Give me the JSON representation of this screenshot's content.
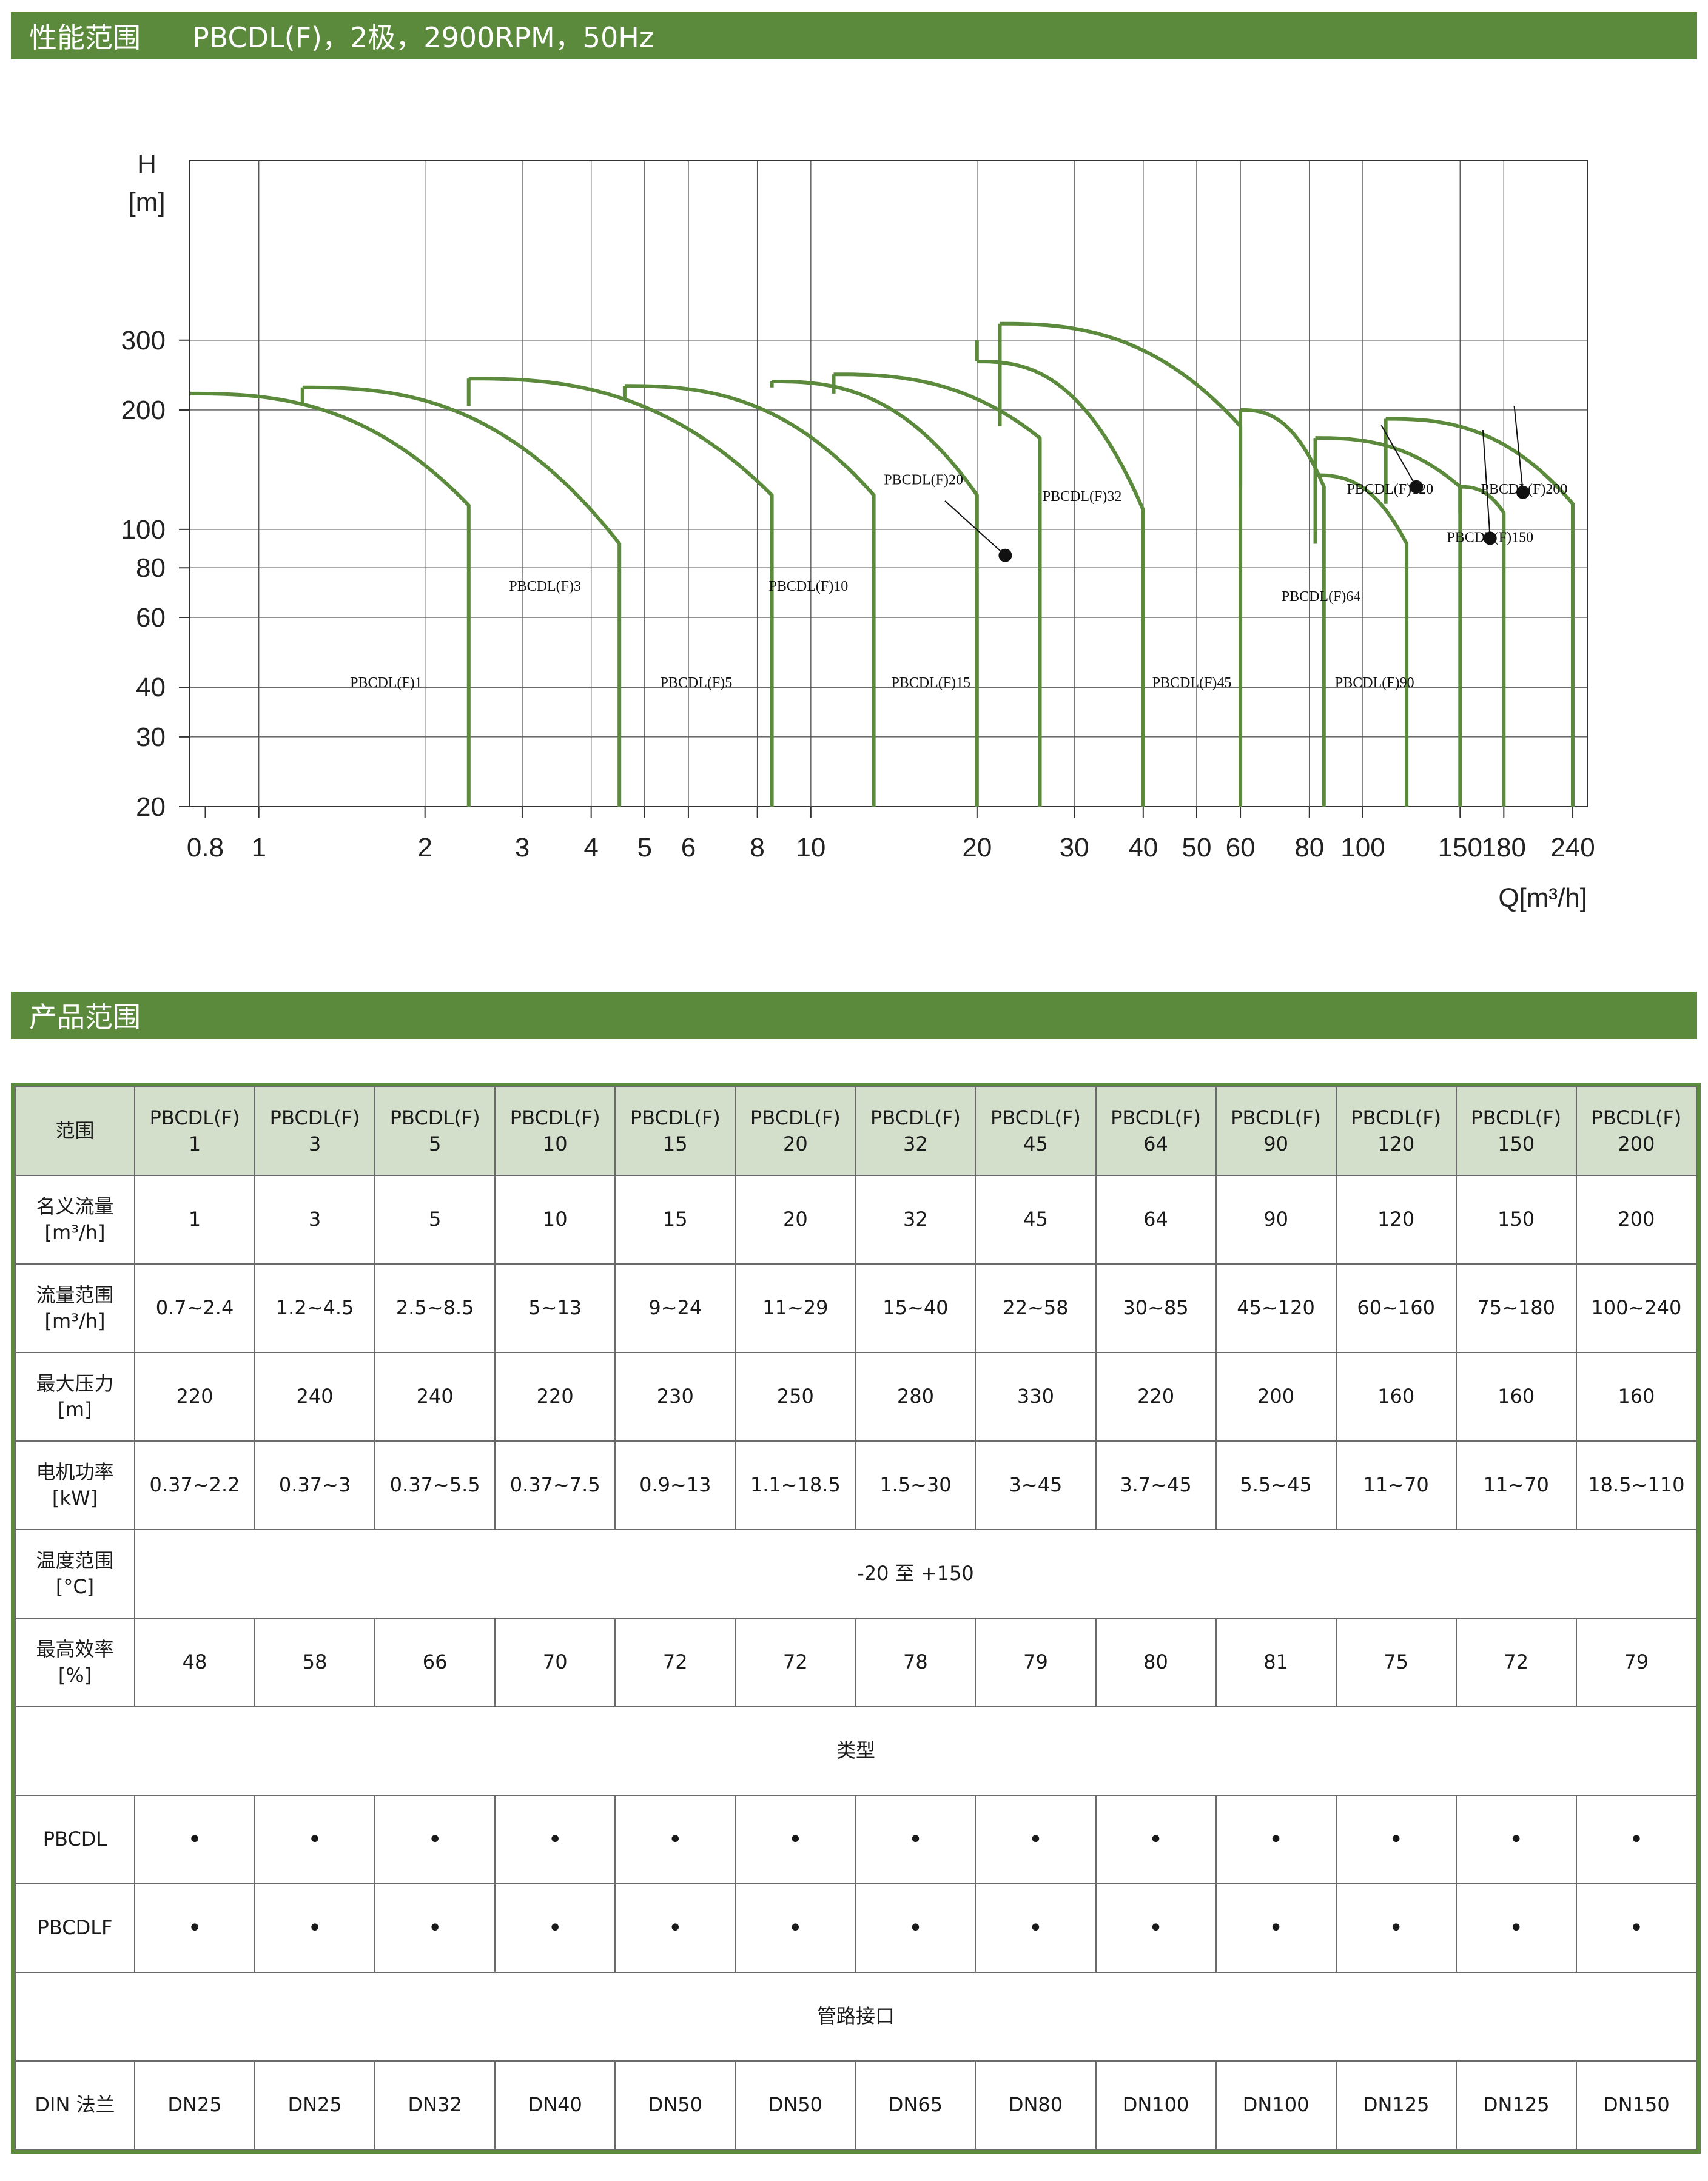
{
  "section1": {
    "title": "性能范围",
    "subtitle": "PBCDL(F)，2极，2900RPM，50Hz"
  },
  "section2": {
    "title": "产品范围"
  },
  "chart_data": {
    "type": "line",
    "title": "",
    "xlabel": "Q[m³/h]",
    "ylabel_line1": "H",
    "ylabel_line2": "[m]",
    "x_scale": "log",
    "y_scale": "log",
    "xlim": [
      0.75,
      255
    ],
    "ylim": [
      20,
      850
    ],
    "x_ticks": [
      0.8,
      1,
      2,
      3,
      4,
      5,
      6,
      8,
      10,
      20,
      30,
      40,
      50,
      60,
      80,
      100,
      150,
      180,
      240
    ],
    "x_tick_labels": [
      "0.8",
      "1",
      "2",
      "3",
      "4",
      "5",
      "6",
      "8",
      "10",
      "20",
      "30",
      "40",
      "50",
      "60",
      "80",
      "100",
      "150",
      "180",
      "240"
    ],
    "y_ticks": [
      20,
      30,
      40,
      60,
      80,
      100,
      200,
      300
    ],
    "y_tick_labels": [
      "20",
      "30",
      "40",
      "60",
      "80",
      "100",
      "200",
      "300"
    ],
    "x_grid": [
      1,
      2,
      3,
      4,
      5,
      6,
      8,
      10,
      20,
      30,
      40,
      50,
      60,
      80,
      100,
      150,
      180
    ],
    "y_grid": [
      30,
      40,
      60,
      80,
      100,
      200,
      300
    ],
    "series_color": "#5b8a3c",
    "series": [
      {
        "name": "PBCDL(F)1",
        "q_min": 0.75,
        "q_max": 2.4,
        "h_max": 220,
        "h_end": 115,
        "knee": 1.2,
        "h_knee": 207,
        "label_q": 1.7,
        "label_h": 40
      },
      {
        "name": "PBCDL(F)3",
        "q_min": 1.2,
        "q_max": 4.5,
        "h_max": 228,
        "h_end": 92,
        "knee": 2.4,
        "h_knee": 205,
        "label_q": 3.3,
        "label_h": 70
      },
      {
        "name": "PBCDL(F)5",
        "q_min": 2.4,
        "q_max": 8.5,
        "h_max": 240,
        "h_end": 122,
        "knee": 4.6,
        "h_knee": 205,
        "label_q": 6.2,
        "label_h": 40
      },
      {
        "name": "PBCDL(F)10",
        "q_min": 4.6,
        "q_max": 13,
        "h_max": 230,
        "h_end": 122,
        "knee": 8.5,
        "h_knee": 213,
        "label_q": 9.9,
        "label_h": 70
      },
      {
        "name": "PBCDL(F)15",
        "q_min": 8.5,
        "q_max": 20,
        "h_max": 236,
        "h_end": 122,
        "knee": 11,
        "h_knee": 228,
        "label_q": 16.5,
        "label_h": 40
      },
      {
        "name": "PBCDL(F)20",
        "q_min": 11,
        "q_max": 26,
        "h_max": 246,
        "h_end": 170,
        "knee": 20,
        "h_knee": 220,
        "label_q": 16,
        "label_h": 130
      },
      {
        "name": "PBCDL(F)32",
        "q_min": 20,
        "q_max": 40,
        "h_max": 265,
        "h_end": 112,
        "knee": 22,
        "h_knee": 300,
        "label_q": 31,
        "label_h": 118
      },
      {
        "name": "PBCDL(F)45",
        "q_min": 22,
        "q_max": 60,
        "h_max": 330,
        "h_end": 182,
        "knee": 60,
        "h_knee": 182,
        "label_q": 49,
        "label_h": 40
      },
      {
        "name": "PBCDL(F)64",
        "q_min": 60,
        "q_max": 85,
        "h_max": 200,
        "h_end": 128,
        "knee": 85,
        "h_knee": 128,
        "label_q": 84,
        "label_h": 66
      },
      {
        "name": "PBCDL(F)90",
        "q_min": 82,
        "q_max": 120,
        "h_max": 137,
        "h_end": 92,
        "knee": 120,
        "h_knee": 92,
        "label_q": 105,
        "label_h": 40
      },
      {
        "name": "PBCDL(F)120",
        "q_min": 82,
        "q_max": 150,
        "h_max": 170,
        "h_end": 128,
        "knee": 150,
        "h_knee": 128,
        "label_q": 112,
        "label_h": 123
      },
      {
        "name": "PBCDL(F)150",
        "q_min": 150,
        "q_max": 180,
        "h_max": 128,
        "h_end": 110,
        "knee": 180,
        "h_knee": 110,
        "label_q": 170,
        "label_h": 93
      },
      {
        "name": "PBCDL(F)200",
        "q_min": 110,
        "q_max": 240,
        "h_max": 190,
        "h_end": 116,
        "knee": 240,
        "h_knee": 116,
        "label_q": 196,
        "label_h": 123
      }
    ],
    "label_texts": {
      "l1": "PBCDL(F)1",
      "l3": "PBCDL(F)3",
      "l5": "PBCDL(F)5",
      "l10": "PBCDL(F)10",
      "l15": "PBCDL(F)15",
      "l20": "PBCDL(F)20",
      "l32": "PBCDL(F)32",
      "l45": "PBCDL(F)45",
      "l64": "PBCDL(F)64",
      "l90": "PBCDL(F)90",
      "l120": "PBCDL(F)120",
      "l150": "PBCDL(F)150",
      "l200": "PBCDL(F)200"
    }
  },
  "table": {
    "header_label": "范围",
    "models": [
      {
        "a": "PBCDL(F)",
        "b": "1"
      },
      {
        "a": "PBCDL(F)",
        "b": "3"
      },
      {
        "a": "PBCDL(F)",
        "b": "5"
      },
      {
        "a": "PBCDL(F)",
        "b": "10"
      },
      {
        "a": "PBCDL(F)",
        "b": "15"
      },
      {
        "a": "PBCDL(F)",
        "b": "20"
      },
      {
        "a": "PBCDL(F)",
        "b": "32"
      },
      {
        "a": "PBCDL(F)",
        "b": "45"
      },
      {
        "a": "PBCDL(F)",
        "b": "64"
      },
      {
        "a": "PBCDL(F)",
        "b": "90"
      },
      {
        "a": "PBCDL(F)",
        "b": "120"
      },
      {
        "a": "PBCDL(F)",
        "b": "150"
      },
      {
        "a": "PBCDL(F)",
        "b": "200"
      }
    ],
    "rows": [
      {
        "l1": "名义流量",
        "l2": "[m³/h]",
        "values": [
          "1",
          "3",
          "5",
          "10",
          "15",
          "20",
          "32",
          "45",
          "64",
          "90",
          "120",
          "150",
          "200"
        ]
      },
      {
        "l1": "流量范围",
        "l2": "[m³/h]",
        "values": [
          "0.7~2.4",
          "1.2~4.5",
          "2.5~8.5",
          "5~13",
          "9~24",
          "11~29",
          "15~40",
          "22~58",
          "30~85",
          "45~120",
          "60~160",
          "75~180",
          "100~240"
        ]
      },
      {
        "l1": "最大压力",
        "l2": "[m]",
        "values": [
          "220",
          "240",
          "240",
          "220",
          "230",
          "250",
          "280",
          "330",
          "220",
          "200",
          "160",
          "160",
          "160"
        ]
      },
      {
        "l1": "电机功率",
        "l2": "[kW]",
        "values": [
          "0.37~2.2",
          "0.37~3",
          "0.37~5.5",
          "0.37~7.5",
          "0.9~13",
          "1.1~18.5",
          "1.5~30",
          "3~45",
          "3.7~45",
          "5.5~45",
          "11~70",
          "11~70",
          "18.5~110"
        ]
      }
    ],
    "temp_row": {
      "l1": "温度范围",
      "l2": "[°C]",
      "value": "-20 至 +150"
    },
    "eff_row": {
      "l1": "最高效率",
      "l2": "[%]",
      "values": [
        "48",
        "58",
        "66",
        "70",
        "72",
        "72",
        "78",
        "79",
        "80",
        "81",
        "75",
        "72",
        "79"
      ]
    },
    "type_heading": "类型",
    "type_rows": [
      {
        "label": "PBCDL",
        "values": [
          "•",
          "•",
          "•",
          "•",
          "•",
          "•",
          "•",
          "•",
          "•",
          "•",
          "•",
          "•",
          "•"
        ]
      },
      {
        "label": "PBCDLF",
        "values": [
          "•",
          "•",
          "•",
          "•",
          "•",
          "•",
          "•",
          "•",
          "•",
          "•",
          "•",
          "•",
          "•"
        ]
      }
    ],
    "pipe_heading": "管路接口",
    "pipe_row": {
      "label": "DIN 法兰",
      "values": [
        "DN25",
        "DN25",
        "DN32",
        "DN40",
        "DN50",
        "DN50",
        "DN65",
        "DN80",
        "DN100",
        "DN100",
        "DN125",
        "DN125",
        "DN150"
      ]
    }
  }
}
